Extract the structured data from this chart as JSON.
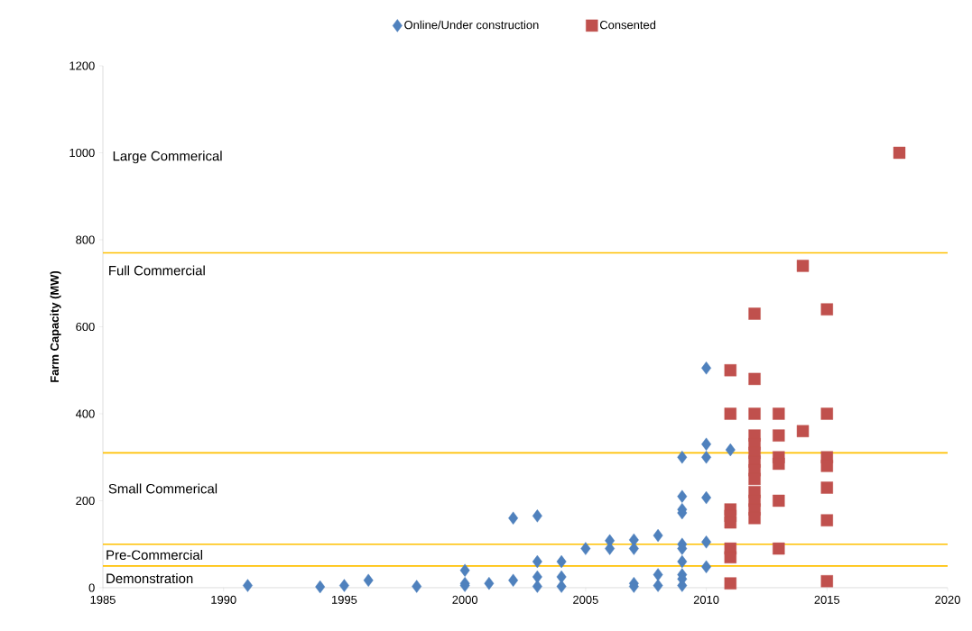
{
  "chart_data": {
    "type": "scatter",
    "ylabel": "Farm Capacity (MW)",
    "xlim": [
      1985,
      2020
    ],
    "xticks": [
      1985,
      1990,
      1995,
      2000,
      2005,
      2010,
      2015,
      2020
    ],
    "ylim": [
      0,
      1200
    ],
    "yticks": [
      0,
      200,
      400,
      600,
      800,
      1000,
      1200
    ],
    "grid": false,
    "legend": "top",
    "series": [
      {
        "name": "Online/Under construction",
        "color": "#4f81bd",
        "marker": "diamond",
        "x": [
          1991,
          1994,
          1995,
          1996,
          1998,
          2000,
          2000,
          2000,
          2001,
          2002,
          2002,
          2003,
          2003,
          2003,
          2003,
          2004,
          2004,
          2004,
          2005,
          2006,
          2006,
          2007,
          2007,
          2007,
          2007,
          2008,
          2008,
          2008,
          2009,
          2009,
          2009,
          2009,
          2009,
          2009,
          2009,
          2009,
          2009,
          2009,
          2010,
          2010,
          2010,
          2010,
          2010,
          2010,
          2011
        ],
        "values": [
          5,
          2,
          5,
          17,
          3,
          40,
          10,
          5,
          10,
          17,
          160,
          165,
          60,
          25,
          3,
          60,
          25,
          3,
          90,
          108,
          90,
          110,
          90,
          10,
          3,
          120,
          30,
          5,
          300,
          210,
          180,
          172,
          100,
          90,
          60,
          30,
          20,
          5,
          505,
          330,
          300,
          207,
          105,
          48,
          317
        ]
      },
      {
        "name": "Consented",
        "color": "#c0504d",
        "marker": "square",
        "x": [
          2011,
          2011,
          2011,
          2011,
          2011,
          2011,
          2011,
          2011,
          2012,
          2012,
          2012,
          2012,
          2012,
          2012,
          2012,
          2012,
          2012,
          2012,
          2012,
          2012,
          2012,
          2013,
          2013,
          2013,
          2013,
          2013,
          2013,
          2014,
          2014,
          2015,
          2015,
          2015,
          2015,
          2015,
          2015,
          2015,
          2018
        ],
        "values": [
          500,
          400,
          180,
          165,
          150,
          90,
          70,
          10,
          630,
          480,
          400,
          350,
          330,
          310,
          290,
          270,
          250,
          220,
          200,
          180,
          160,
          400,
          350,
          300,
          285,
          200,
          90,
          740,
          360,
          640,
          400,
          300,
          280,
          230,
          155,
          15,
          1000
        ]
      }
    ],
    "ref_lines": [
      {
        "axis": "y",
        "value": 770,
        "color": "#ffc000"
      },
      {
        "axis": "y",
        "value": 310,
        "color": "#ffc000"
      },
      {
        "axis": "y",
        "value": 100,
        "color": "#ffc000"
      },
      {
        "axis": "y",
        "value": 50,
        "color": "#ffc000"
      }
    ],
    "annotations": [
      "Large Commerical",
      "Full Commercial",
      "Small Commerical",
      "Pre-Commercial",
      "Demonstration"
    ]
  }
}
